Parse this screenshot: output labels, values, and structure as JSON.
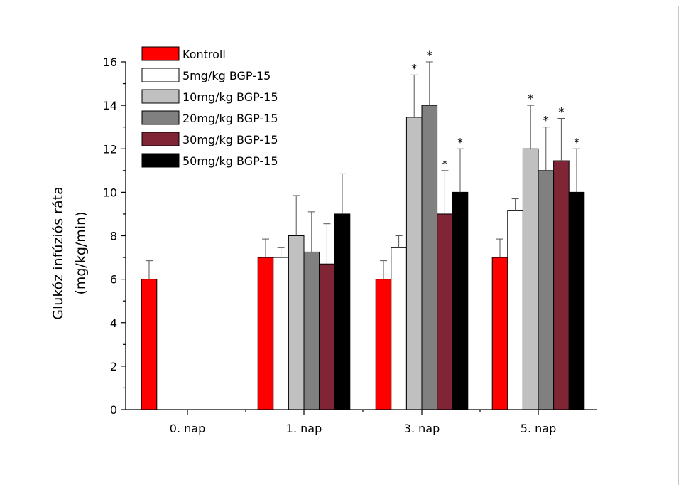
{
  "chart_data": {
    "type": "bar",
    "title": "",
    "xlabel": "",
    "ylabel_lines": [
      "Glukóz infúziós ráta",
      "(mg/kg/min)"
    ],
    "ylim": [
      0,
      16
    ],
    "yticks": [
      0,
      2,
      4,
      6,
      8,
      10,
      12,
      14,
      16
    ],
    "categories": [
      "0. nap",
      "1. nap",
      "3. nap",
      "5. nap"
    ],
    "grid": false,
    "legend_position": "top-left",
    "significance_marker": "*",
    "series": [
      {
        "name": "Kontroll",
        "color": "#ff0000",
        "values": [
          6,
          7,
          6,
          7
        ],
        "errors": [
          0.85,
          0.85,
          0.85,
          0.85
        ],
        "significant": [
          false,
          false,
          false,
          false
        ]
      },
      {
        "name": "5mg/kg BGP-15",
        "color": "#ffffff",
        "values": [
          null,
          7,
          7.45,
          9.15
        ],
        "errors": [
          null,
          0.45,
          0.55,
          0.55
        ],
        "significant": [
          false,
          false,
          false,
          false
        ]
      },
      {
        "name": "10mg/kg BGP-15",
        "color": "#c0c0c0",
        "values": [
          null,
          8,
          13.45,
          12
        ],
        "errors": [
          null,
          1.85,
          1.95,
          2
        ],
        "significant": [
          false,
          false,
          true,
          true
        ]
      },
      {
        "name": "20mg/kg BGP-15",
        "color": "#808080",
        "values": [
          null,
          7.25,
          14,
          11
        ],
        "errors": [
          null,
          1.85,
          2,
          2
        ],
        "significant": [
          false,
          false,
          true,
          true
        ]
      },
      {
        "name": "30mg/kg BGP-15",
        "color": "#7f2536",
        "values": [
          null,
          6.7,
          9,
          11.45
        ],
        "errors": [
          null,
          1.85,
          2,
          1.95
        ],
        "significant": [
          false,
          false,
          true,
          true
        ]
      },
      {
        "name": "50mg/kg BGP-15",
        "color": "#000000",
        "values": [
          null,
          9,
          10,
          10
        ],
        "errors": [
          null,
          1.85,
          2,
          2
        ],
        "significant": [
          false,
          false,
          true,
          true
        ]
      }
    ]
  }
}
